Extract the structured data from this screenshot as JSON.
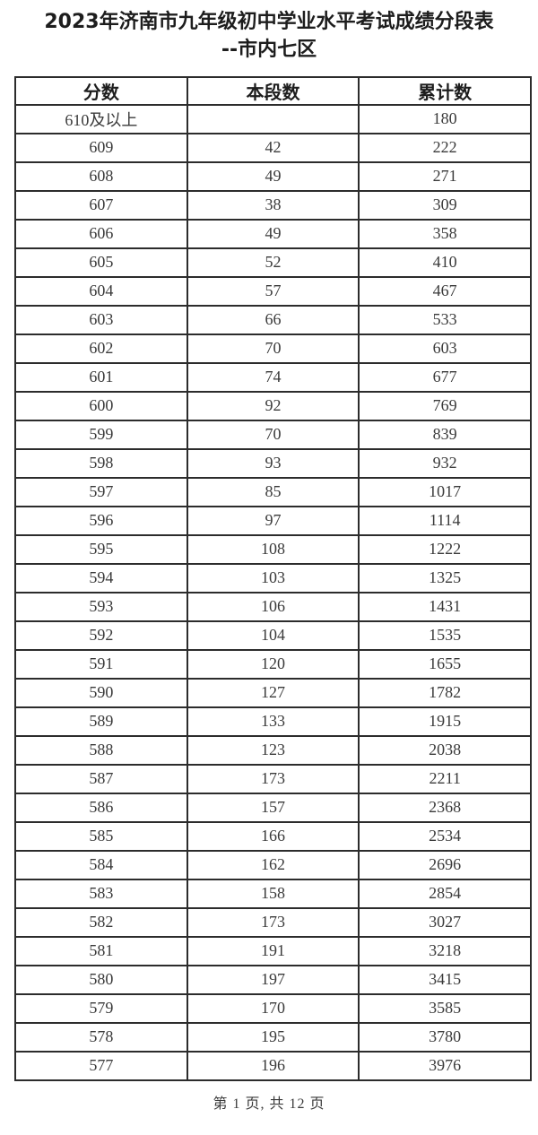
{
  "document": {
    "title_line1": "2023年济南市九年级初中学业水平考试成绩分段表",
    "title_line2": "--市内七区",
    "footer": "第 1 页, 共 12 页",
    "page_number": "1",
    "total_pages": "12"
  },
  "table": {
    "headers": [
      "分数",
      "本段数",
      "累计数"
    ],
    "rows": [
      [
        "610及以上",
        "",
        "180"
      ],
      [
        "609",
        "42",
        "222"
      ],
      [
        "608",
        "49",
        "271"
      ],
      [
        "607",
        "38",
        "309"
      ],
      [
        "606",
        "49",
        "358"
      ],
      [
        "605",
        "52",
        "410"
      ],
      [
        "604",
        "57",
        "467"
      ],
      [
        "603",
        "66",
        "533"
      ],
      [
        "602",
        "70",
        "603"
      ],
      [
        "601",
        "74",
        "677"
      ],
      [
        "600",
        "92",
        "769"
      ],
      [
        "599",
        "70",
        "839"
      ],
      [
        "598",
        "93",
        "932"
      ],
      [
        "597",
        "85",
        "1017"
      ],
      [
        "596",
        "97",
        "1114"
      ],
      [
        "595",
        "108",
        "1222"
      ],
      [
        "594",
        "103",
        "1325"
      ],
      [
        "593",
        "106",
        "1431"
      ],
      [
        "592",
        "104",
        "1535"
      ],
      [
        "591",
        "120",
        "1655"
      ],
      [
        "590",
        "127",
        "1782"
      ],
      [
        "589",
        "133",
        "1915"
      ],
      [
        "588",
        "123",
        "2038"
      ],
      [
        "587",
        "173",
        "2211"
      ],
      [
        "586",
        "157",
        "2368"
      ],
      [
        "585",
        "166",
        "2534"
      ],
      [
        "584",
        "162",
        "2696"
      ],
      [
        "583",
        "158",
        "2854"
      ],
      [
        "582",
        "173",
        "3027"
      ],
      [
        "581",
        "191",
        "3218"
      ],
      [
        "580",
        "197",
        "3415"
      ],
      [
        "579",
        "170",
        "3585"
      ],
      [
        "578",
        "195",
        "3780"
      ],
      [
        "577",
        "196",
        "3976"
      ]
    ]
  },
  "colors": {
    "background": "#ffffff",
    "title_text": "#1d1d1d",
    "body_text": "#3a3a3a",
    "border": "#2c2c2c"
  }
}
